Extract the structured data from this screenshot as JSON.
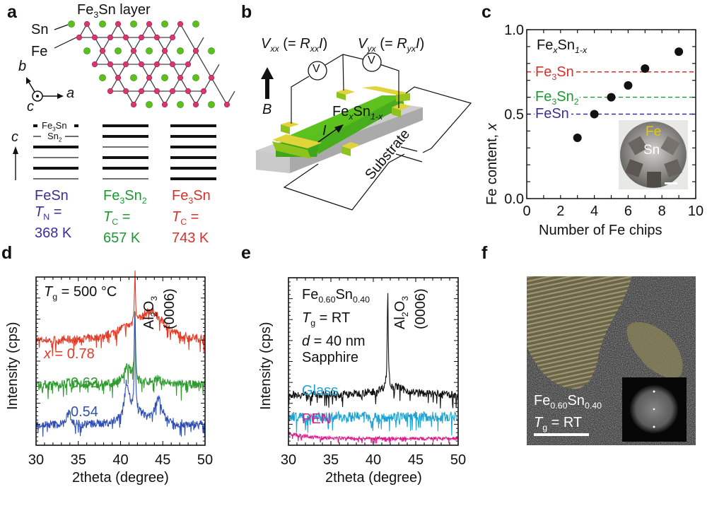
{
  "figure": {
    "panel_labels": [
      "a",
      "b",
      "c",
      "d",
      "e",
      "f"
    ],
    "colors": {
      "fesn": "#3a2f98",
      "fe3sn2": "#1a9a32",
      "fe3sn": "#d8302a",
      "fe_atom": "#d9356f",
      "sn_atom": "#5cbf1f",
      "glass": "#1aa3d4",
      "pen": "#e0198f",
      "sapphire": "#111111",
      "xrd_blue": "#2f4fb5",
      "xrd_green": "#2f9a2f",
      "xrd_red": "#e43a26"
    }
  },
  "panel_a": {
    "title": "Fe3Sn layer",
    "title_main": "Fe",
    "title_sub": "3",
    "title_rest": "Sn layer",
    "sn_label": "Sn",
    "fe_label": "Fe",
    "axis_a": "a",
    "axis_b": "b",
    "axis_c": "c",
    "stack_axis": "c",
    "stack_labels": {
      "top": "Fe3Sn",
      "top_main": "Fe",
      "top_sub": "3",
      "top_rest": "Sn",
      "second": "Sn2",
      "second_main": "Sn",
      "second_sub": "2"
    },
    "stacks": [
      {
        "name": "FeSn",
        "name_main": "FeSn",
        "name_sub": "",
        "name_rest": "",
        "layers": [
          "thick",
          "thin",
          "thick",
          "thin",
          "thick",
          "thin"
        ],
        "tlabel": "T",
        "tsub": "N",
        "eq": " =",
        "value": "368 K",
        "color_key": "fesn"
      },
      {
        "name": "Fe3Sn2",
        "name_main": "Fe",
        "name_sub": "3",
        "name_rest": "Sn",
        "name_sub2": "2",
        "layers": [
          "thick",
          "thick",
          "thin",
          "thick",
          "thick",
          "thin"
        ],
        "tlabel": "T",
        "tsub": "C",
        "eq": " =",
        "value": "657 K",
        "color_key": "fe3sn2"
      },
      {
        "name": "Fe3Sn",
        "name_main": "Fe",
        "name_sub": "3",
        "name_rest": "Sn",
        "layers": [
          "thick",
          "thick",
          "thick",
          "thick",
          "thick",
          "thick"
        ],
        "tlabel": "T",
        "tsub": "C",
        "eq": " =",
        "value": "743 K",
        "color_key": "fe3sn"
      }
    ]
  },
  "panel_b": {
    "vxx_label": {
      "v": "V",
      "vsub": "xx",
      "mid": " (= ",
      "r": "R",
      "rsub": "xx",
      "i": "I",
      "end": ")"
    },
    "vyx_label": {
      "v": "V",
      "vsub": "yx",
      "mid": " (= ",
      "r": "R",
      "rsub": "yx",
      "i": "I",
      "end": ")"
    },
    "voltmeter_symbol": "V",
    "field_label": "B",
    "current_label": "I",
    "film_label": {
      "main": "Fe",
      "sub1": "x",
      "mid": "Sn",
      "sub2": "1-x"
    },
    "substrate_label": "Substrate"
  },
  "chart_data": [
    {
      "panel": "c",
      "type": "scatter",
      "title": "",
      "xlabel": "Number of Fe chips",
      "ylabel": "Fe content, x",
      "xlim": [
        0,
        10
      ],
      "ylim": [
        0.0,
        1.0
      ],
      "xticks": [
        0,
        2,
        4,
        6,
        8,
        10
      ],
      "xtick_labels": [
        "0",
        "2",
        "4",
        "6",
        "8",
        "10"
      ],
      "yticks": [
        0.0,
        0.5,
        1.0
      ],
      "ytick_labels": [
        "0.0",
        "0.5",
        "1.0"
      ],
      "yminor_step": 0.1,
      "xminor_step": 1,
      "points": [
        {
          "x": 3,
          "y": 0.36
        },
        {
          "x": 4,
          "y": 0.5
        },
        {
          "x": 5,
          "y": 0.6
        },
        {
          "x": 6,
          "y": 0.67
        },
        {
          "x": 7,
          "y": 0.77
        },
        {
          "x": 9,
          "y": 0.87
        }
      ],
      "annotation": {
        "main": "Fe",
        "sub1": "x",
        "mid": "Sn",
        "sub2": "1-x"
      },
      "reference_lines": [
        {
          "label": "Fe3Sn",
          "main": "Fe",
          "sub": "3",
          "rest": "Sn",
          "sub2": "",
          "y": 0.75,
          "color_key": "fe3sn"
        },
        {
          "label": "Fe3Sn2",
          "main": "Fe",
          "sub": "3",
          "rest": "Sn",
          "sub2": "2",
          "y": 0.6,
          "color_key": "fe3sn2"
        },
        {
          "label": "FeSn",
          "main": "FeSn",
          "sub": "",
          "rest": "",
          "sub2": "",
          "y": 0.5,
          "color_key": "fesn"
        }
      ],
      "inset": {
        "type": "photo",
        "labels": [
          "Fe",
          "Sn"
        ]
      },
      "grid": false
    },
    {
      "panel": "d",
      "type": "line",
      "xlabel": "2theta (degree)",
      "ylabel": "Intensity (cps)",
      "xlim": [
        30,
        50
      ],
      "xticks": [
        30,
        35,
        40,
        45,
        50
      ],
      "xtick_labels": [
        "30",
        "35",
        "40",
        "45",
        "50"
      ],
      "annotation": {
        "t": "T",
        "tsub": "g",
        "text": " = 500 °C"
      },
      "peak_label": {
        "line1_main": "Al",
        "line1_sub": "2",
        "line1_mid": "O",
        "line1_sub2": "3",
        "line2": "(0006)"
      },
      "substrate_peak_2theta": 41.7,
      "series": [
        {
          "name": "x = 0.78",
          "label_prefix": "x",
          "label_value": " = 0.78",
          "color_key": "xrd_red",
          "offset": 0.62,
          "peaks": [
            {
              "c": 41.7,
              "h": 0.33,
              "w": 0.08
            },
            {
              "c": 43.6,
              "h": 0.17,
              "w": 1.8
            },
            {
              "c": 40.3,
              "h": 0.04,
              "w": 1.6
            }
          ]
        },
        {
          "name": "0.62",
          "label_prefix": "",
          "label_value": "0.62",
          "color_key": "xrd_green",
          "offset": 0.36,
          "peaks": [
            {
              "c": 41.7,
              "h": 0.45,
              "w": 0.08
            },
            {
              "c": 40.8,
              "h": 0.1,
              "w": 0.6
            },
            {
              "c": 44.3,
              "h": 0.03,
              "w": 0.8
            },
            {
              "c": 33.8,
              "h": 0.02,
              "w": 0.3
            }
          ]
        },
        {
          "name": "0.54",
          "label_prefix": "",
          "label_value": "0.54",
          "color_key": "xrd_blue",
          "offset": 0.12,
          "peaks": [
            {
              "c": 41.7,
              "h": 0.58,
              "w": 0.08
            },
            {
              "c": 40.75,
              "h": 0.22,
              "w": 0.35
            },
            {
              "c": 44.5,
              "h": 0.14,
              "w": 0.5
            },
            {
              "c": 33.9,
              "h": 0.08,
              "w": 0.25
            },
            {
              "c": 42.0,
              "h": 0.06,
              "w": 1.4
            }
          ]
        }
      ],
      "grid": false
    },
    {
      "panel": "e",
      "type": "line",
      "xlabel": "2theta (degree)",
      "ylabel": "Intensity (cps)",
      "xlim": [
        30,
        50
      ],
      "xticks": [
        30,
        35,
        40,
        45,
        50
      ],
      "xtick_labels": [
        "30",
        "35",
        "40",
        "45",
        "50"
      ],
      "annotation_lines": [
        {
          "main": "Fe",
          "sub1": "0.60",
          "mid": "Sn",
          "sub2": "0.40"
        },
        {
          "t": "T",
          "tsub": "g",
          "text": " = RT"
        },
        {
          "d": "d",
          "text": " = 40 nm"
        }
      ],
      "peak_label": {
        "line1_main": "Al",
        "line1_sub": "2",
        "line1_mid": "O",
        "line1_sub2": "3",
        "line2": "(0006)"
      },
      "substrate_peak_2theta": 41.7,
      "series": [
        {
          "name": "Sapphire",
          "color_key": "sapphire",
          "offset": 0.3,
          "peaks": [
            {
              "c": 41.7,
              "h": 0.58,
              "w": 0.07
            },
            {
              "c": 42.2,
              "h": 0.05,
              "w": 1.8
            }
          ]
        },
        {
          "name": "Glass",
          "color_key": "glass",
          "offset": 0.17,
          "peaks": []
        },
        {
          "name": "PEN",
          "color_key": "pen",
          "offset": 0.04,
          "peaks": [],
          "decay": 0.03
        }
      ],
      "grid": false
    }
  ],
  "panel_f": {
    "type": "TEM image",
    "label_line1": {
      "main": "Fe",
      "sub1": "0.60",
      "mid": "Sn",
      "sub2": "0.40"
    },
    "label_line2": {
      "t": "T",
      "tsub": "g",
      "text": " = RT"
    },
    "inset": "FFT pattern",
    "scale_bar": true
  }
}
